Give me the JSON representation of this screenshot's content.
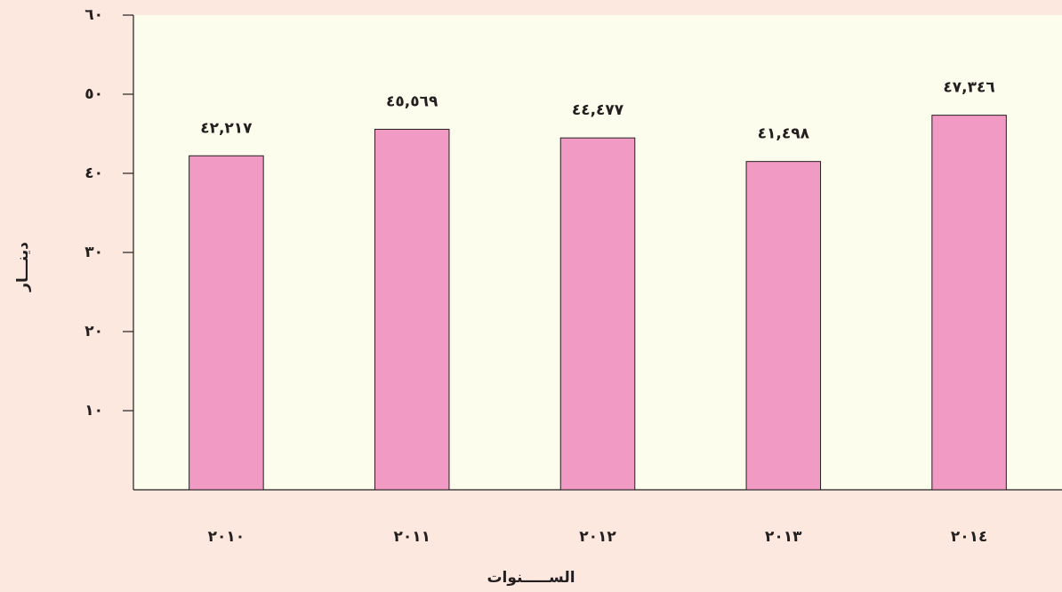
{
  "chart_data": {
    "type": "bar",
    "x_label": "الســـــنوات",
    "y_label": "دينـــار",
    "categories": [
      "٢٠١٠",
      "٢٠١١",
      "٢٠١٢",
      "٢٠١٣",
      "٢٠١٤"
    ],
    "values": [
      42.217,
      45.569,
      44.477,
      41.498,
      47.346
    ],
    "value_labels": [
      "٤٢,٢١٧",
      "٤٥,٥٦٩",
      "٤٤,٤٧٧",
      "٤١,٤٩٨",
      "٤٧,٣٤٦"
    ],
    "color": "#f19ac3",
    "ylim": [
      0,
      60
    ],
    "yticks": [
      {
        "value": 10,
        "label": "١٠"
      },
      {
        "value": 20,
        "label": "٢٠"
      },
      {
        "value": 30,
        "label": "٣٠"
      },
      {
        "value": 40,
        "label": "٤٠"
      },
      {
        "value": 50,
        "label": "٥٠"
      },
      {
        "value": 60,
        "label": "٦٠"
      }
    ]
  }
}
